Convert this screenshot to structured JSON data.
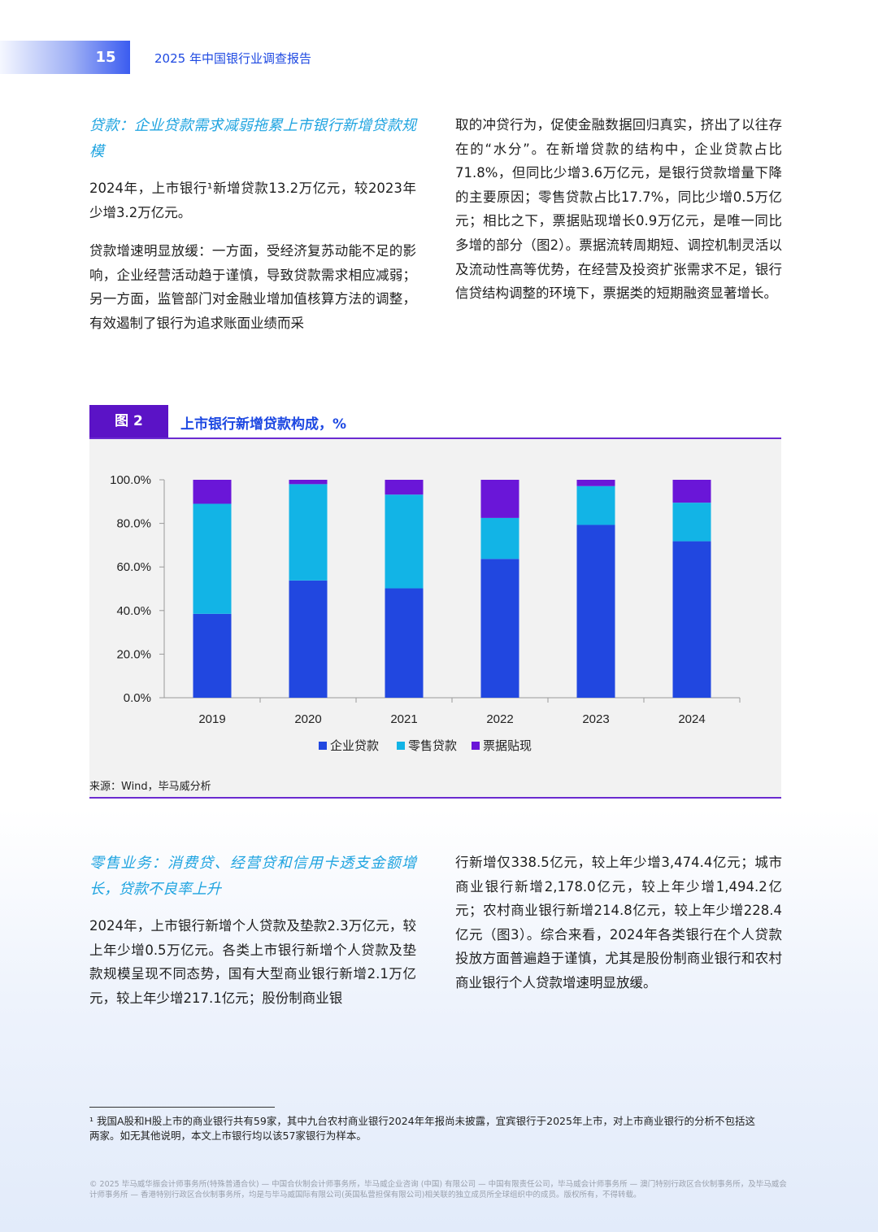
{
  "header": {
    "page_number": "15",
    "title": "2025 年中国银行业调查报告"
  },
  "section1": {
    "title": "贷款：企业贷款需求减弱拖累上市银行新增贷款规模",
    "p1": "2024年，上市银行¹新增贷款13.2万亿元，较2023年少增3.2万亿元。",
    "p2": "贷款增速明显放缓：一方面，受经济复苏动能不足的影响，企业经营活动趋于谨慎，导致贷款需求相应减弱；另一方面，监管部门对金融业增加值核算方法的调整，有效遏制了银行为追求账面业绩而采",
    "p3": "取的冲贷行为，促使金融数据回归真实，挤出了以往存在的“水分”。在新增贷款的结构中，企业贷款占比71.8%，但同比少增3.6万亿元，是银行贷款增量下降的主要原因；零售贷款占比17.7%，同比少增0.5万亿元；相比之下，票据贴现增长0.9万亿元，是唯一同比多增的部分（图2）。票据流转周期短、调控机制灵活以及流动性高等优势，在经营及投资扩张需求不足，银行信贷结构调整的环境下，票据类的短期融资显著增长。"
  },
  "figure": {
    "tag": "图 2",
    "title": "上市银行新增贷款构成，%",
    "source": "来源：Wind，毕马威分析"
  },
  "chart_data": {
    "type": "bar",
    "stacked": true,
    "categories": [
      "2019",
      "2020",
      "2021",
      "2022",
      "2023",
      "2024"
    ],
    "series": [
      {
        "name": "企业贷款",
        "color": "#2147e0",
        "values": [
          38.5,
          53.8,
          50.2,
          63.7,
          79.3,
          71.8
        ]
      },
      {
        "name": "零售贷款",
        "color": "#12b4e6",
        "values": [
          50.5,
          44.2,
          43.0,
          18.8,
          17.8,
          17.7
        ]
      },
      {
        "name": "票据贴现",
        "color": "#6a16d8",
        "values": [
          11.0,
          2.0,
          6.8,
          17.5,
          2.9,
          10.5
        ]
      }
    ],
    "ylim": [
      0,
      100
    ],
    "yticks": [
      "100.0%",
      "80.0%",
      "60.0%",
      "40.0%",
      "20.0%",
      "0.0%"
    ],
    "legend_position": "bottom",
    "grid": false
  },
  "section2": {
    "title": "零售业务：消费贷、经营贷和信用卡透支金额增长，贷款不良率上升",
    "p1": "2024年，上市银行新增个人贷款及垫款2.3万亿元，较上年少增0.5万亿元。各类上市银行新增个人贷款及垫款规模呈现不同态势，国有大型商业银行新增2.1万亿元，较上年少增217.1亿元；股份制商业银",
    "p2": "行新增仅338.5亿元，较上年少增3,474.4亿元；城市商业银行新增2,178.0亿元，较上年少增1,494.2亿元；农村商业银行新增214.8亿元，较上年少增228.4亿元（图3）。综合来看，2024年各类银行在个人贷款投放方面普遍趋于谨慎，尤其是股份制商业银行和农村商业银行个人贷款增速明显放缓。"
  },
  "footnote": "¹ 我国A股和H股上市的商业银行共有59家，其中九台农村商业银行2024年年报尚未披露，宜宾银行于2025年上市，对上市商业银行的分析不包括这两家。如无其他说明，本文上市银行均以该57家银行为样本。",
  "copyright": "© 2025 毕马威华振会计师事务所(特殊普通合伙) — 中国合伙制会计师事务所，毕马威企业咨询 (中国) 有限公司 — 中国有限责任公司，毕马威会计师事务所 — 澳门特别行政区合伙制事务所，及毕马威会计师事务所 — 香港特别行政区合伙制事务所，均是与毕马威国际有限公司(英国私营担保有限公司)相关联的独立成员所全球组织中的成员。版权所有，不得转载。"
}
